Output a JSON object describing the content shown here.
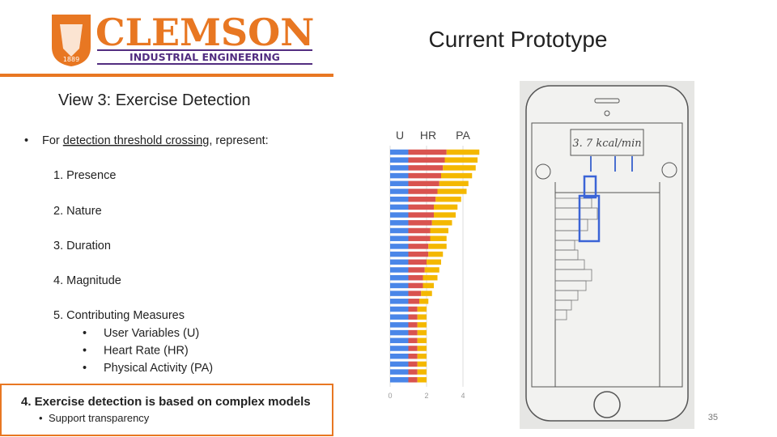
{
  "header": {
    "logo_name": "CLEMSON",
    "logo_year": "1889",
    "logo_department": "INDUSTRIAL ENGINEERING",
    "title": "Current Prototype"
  },
  "view_title": "View 3: Exercise Detection",
  "intro": {
    "bullet": "•",
    "before": "For ",
    "underlined": "detection threshold crossing",
    "after": ", represent:"
  },
  "items": [
    "1.  Presence",
    "2.  Nature",
    "3.  Duration",
    "4.  Magnitude",
    "5.  Contributing Measures"
  ],
  "subitems": [
    {
      "bullet": "•",
      "text": "User Variables (U)"
    },
    {
      "bullet": "•",
      "text": "Heart Rate (HR)"
    },
    {
      "bullet": "•",
      "text": "Physical Activity (PA)"
    }
  ],
  "callout": {
    "title": "4. Exercise detection is based on complex models",
    "bullet": "•",
    "text": "Support transparency"
  },
  "sketch_label": "3. 7 kcal/min",
  "page_number": "35",
  "chart_data": {
    "type": "stacked-barh",
    "xlim": [
      0,
      5
    ],
    "xticks": [
      0,
      2,
      4
    ],
    "grid": true,
    "series": [
      {
        "name": "U",
        "color": "#4a86e8",
        "values": [
          1.0,
          1.0,
          1.0,
          1.0,
          1.0,
          1.0,
          1.0,
          1.0,
          1.0,
          1.0,
          1.0,
          1.0,
          1.0,
          1.0,
          1.0,
          1.0,
          1.0,
          1.0,
          1.0,
          1.0,
          1.0,
          1.0,
          1.0,
          1.0,
          1.0,
          1.0,
          1.0,
          1.0,
          1.0,
          1.0
        ]
      },
      {
        "name": "HR",
        "color": "#d9534f",
        "values": [
          2.1,
          2.0,
          1.9,
          1.8,
          1.7,
          1.6,
          1.5,
          1.4,
          1.4,
          1.3,
          1.2,
          1.2,
          1.1,
          1.1,
          1.0,
          0.9,
          0.8,
          0.8,
          0.7,
          0.6,
          0.5,
          0.5,
          0.5,
          0.5,
          0.5,
          0.5,
          0.5,
          0.5,
          0.5,
          0.5
        ]
      },
      {
        "name": "PA",
        "color": "#f4b800",
        "values": [
          1.8,
          1.8,
          1.8,
          1.7,
          1.6,
          1.6,
          1.4,
          1.3,
          1.2,
          1.1,
          1.0,
          0.9,
          1.0,
          0.8,
          0.8,
          0.8,
          0.8,
          0.6,
          0.6,
          0.5,
          0.5,
          0.5,
          0.5,
          0.5,
          0.5,
          0.5,
          0.5,
          0.5,
          0.5,
          0.5
        ]
      }
    ]
  }
}
